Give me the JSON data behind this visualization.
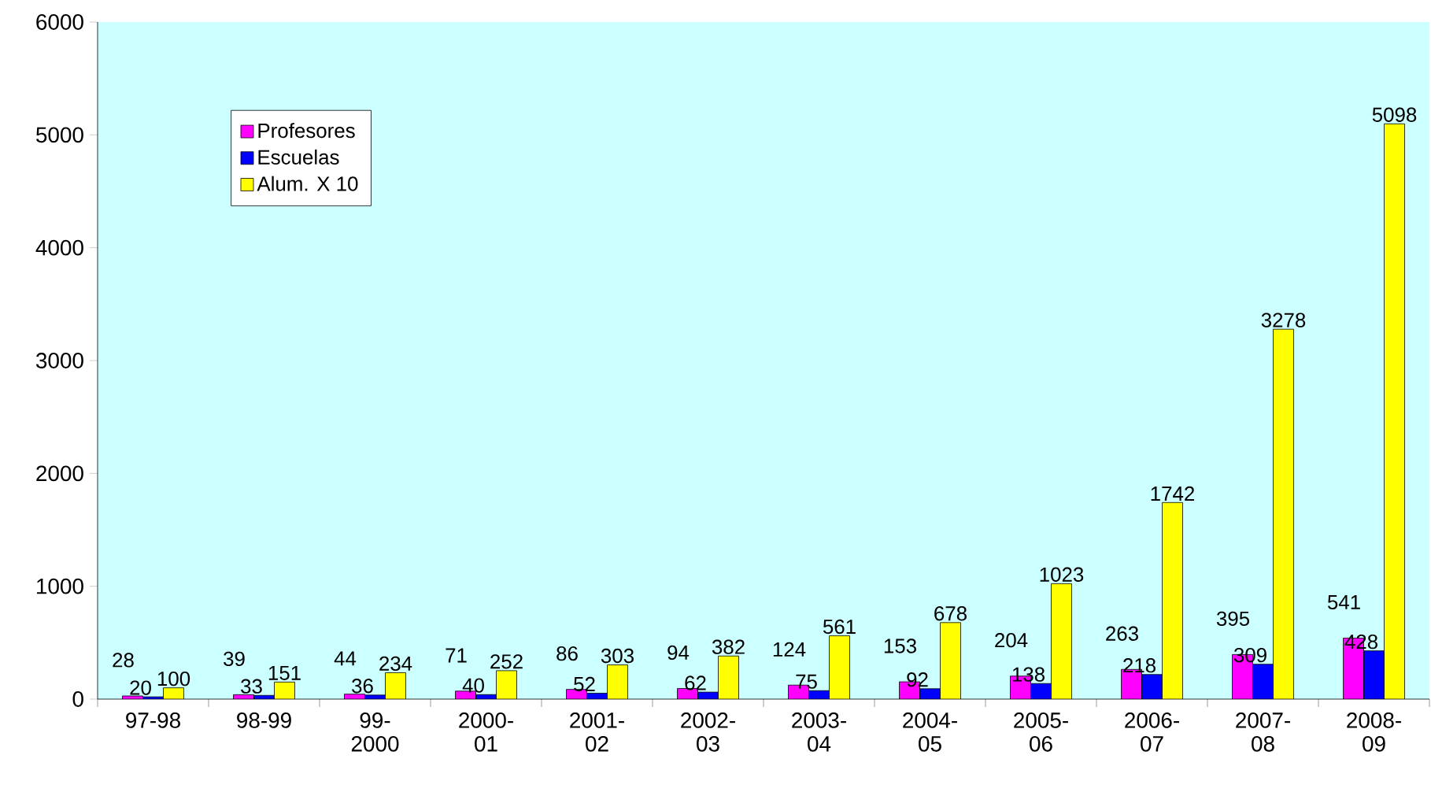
{
  "chart_data": {
    "type": "bar",
    "categories": [
      "97-98",
      "98-99",
      "99-2000",
      "2000-01",
      "2001-02",
      "2002-03",
      "2003-04",
      "2004-05",
      "2005-06",
      "2006-07",
      "2007-08",
      "2008-09"
    ],
    "series": [
      {
        "name": "Profesores",
        "color": "#ff00ff",
        "values": [
          28,
          39,
          44,
          71,
          86,
          94,
          124,
          153,
          204,
          263,
          395,
          541
        ]
      },
      {
        "name": "Escuelas",
        "color": "#0000ff",
        "values": [
          20,
          33,
          36,
          40,
          52,
          62,
          75,
          92,
          138,
          218,
          309,
          428
        ]
      },
      {
        "name": "Alum. X 10",
        "color": "#ffff00",
        "values": [
          100,
          151,
          234,
          252,
          303,
          382,
          561,
          678,
          1023,
          1742,
          3278,
          5098
        ]
      }
    ],
    "ylim": [
      0,
      6000
    ],
    "yticks": [
      0,
      1000,
      2000,
      3000,
      4000,
      5000,
      6000
    ],
    "data_labels": true,
    "grid": false,
    "legend": "top left"
  }
}
